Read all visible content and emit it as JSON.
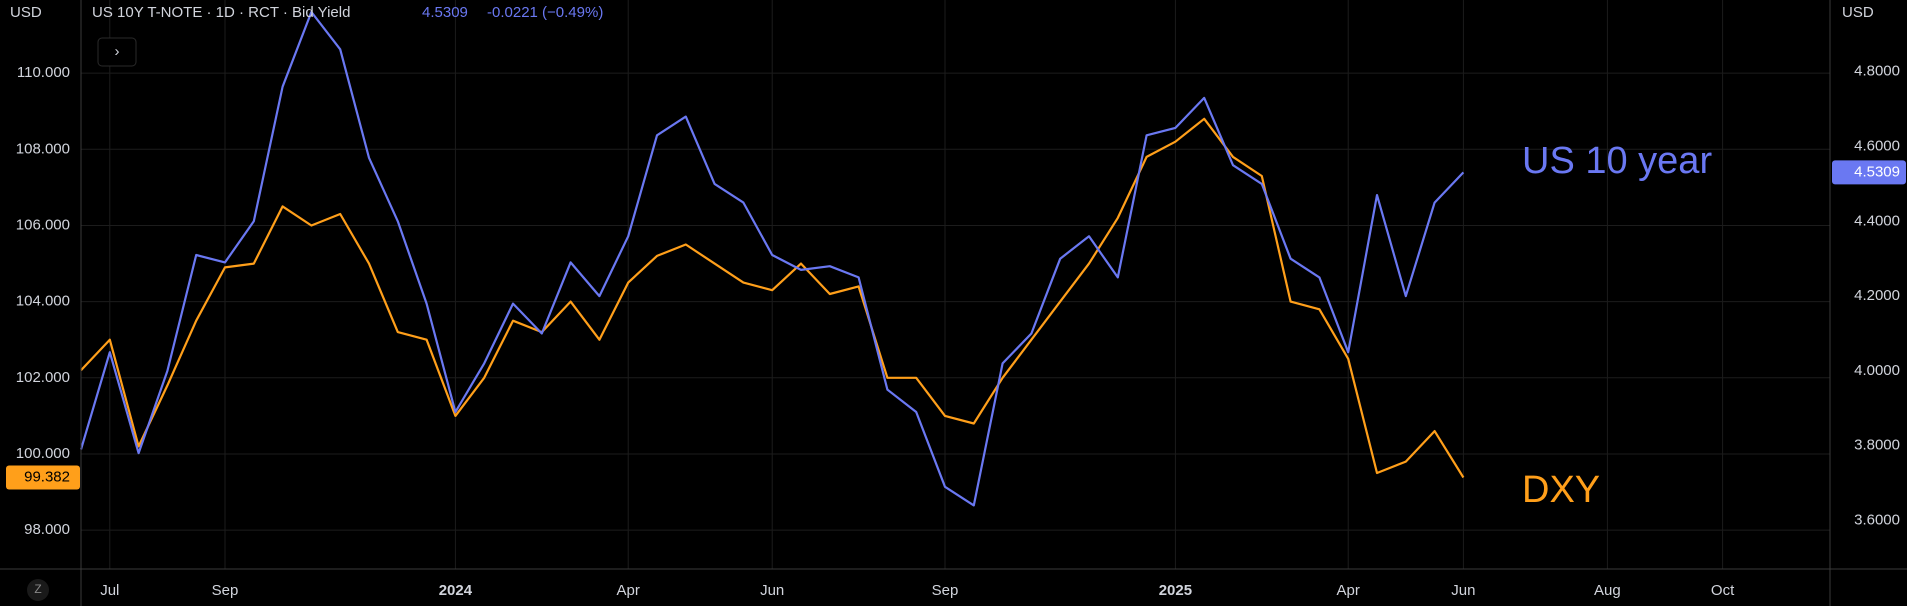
{
  "toolbar": {
    "currency_left": "USD",
    "currency_right": "USD",
    "timezone": "Z",
    "expand": "›"
  },
  "header": {
    "symbol": "US 10Y T-NOTE · 1D · RCT · Bid Yield",
    "change": "-0.0221 (−0.49%)"
  },
  "chart_data": {
    "type": "line",
    "categories": [
      null,
      "Jul",
      null,
      null,
      null,
      "Sep",
      null,
      null,
      null,
      null,
      null,
      null,
      null,
      "2024",
      null,
      null,
      null,
      null,
      null,
      "Apr",
      null,
      null,
      null,
      null,
      "Jun",
      null,
      null,
      null,
      null,
      null,
      "Sep",
      null,
      null,
      null,
      null,
      null,
      null,
      null,
      "2025",
      null,
      null,
      null,
      null,
      null,
      "Apr",
      null,
      null,
      null,
      "Jun",
      null,
      null,
      null,
      null,
      "Aug",
      null,
      null,
      null,
      "Oct",
      null,
      null,
      null
    ],
    "series": [
      {
        "name": "DXY",
        "color": "#ff9f1a",
        "axis": "y",
        "values": [
          102.2,
          103.0,
          100.2,
          101.8,
          103.5,
          104.9,
          105.0,
          106.5,
          106.0,
          106.3,
          105.0,
          103.2,
          103.0,
          101.0,
          102.0,
          103.5,
          103.2,
          104.0,
          103.0,
          104.5,
          105.2,
          105.5,
          105.0,
          104.5,
          104.3,
          105.0,
          104.2,
          104.4,
          102.0,
          102.0,
          101.0,
          100.8,
          102.0,
          103.0,
          104.0,
          105.0,
          106.2,
          107.8,
          108.2,
          108.8,
          107.8,
          107.3,
          104.0,
          103.8,
          102.5,
          99.5,
          99.8,
          100.6,
          99.382,
          null,
          null,
          null,
          null,
          null,
          null,
          null,
          null,
          null,
          null,
          null,
          null
        ]
      },
      {
        "name": "US 10 year",
        "color": "#6a78f2",
        "axis": "y2",
        "values": [
          3.79,
          4.05,
          3.78,
          4.0,
          4.31,
          4.29,
          4.4,
          4.76,
          4.96,
          4.86,
          4.57,
          4.4,
          4.18,
          3.89,
          4.02,
          4.18,
          4.1,
          4.29,
          4.2,
          4.36,
          4.63,
          4.68,
          4.5,
          4.45,
          4.31,
          4.27,
          4.28,
          4.25,
          3.95,
          3.89,
          3.69,
          3.64,
          4.02,
          4.1,
          4.3,
          4.36,
          4.25,
          4.63,
          4.65,
          4.73,
          4.55,
          4.5,
          4.3,
          4.25,
          4.05,
          4.47,
          4.2,
          4.45,
          4.5309,
          null,
          null,
          null,
          null,
          null,
          null,
          null,
          null,
          null,
          null,
          null,
          null
        ]
      }
    ],
    "ylim": [
      96.98,
      111.92
    ],
    "yticks": [
      {
        "value": 98,
        "label": "98.000"
      },
      {
        "value": 100,
        "label": "100.000"
      },
      {
        "value": 102,
        "label": "102.000"
      },
      {
        "value": 104,
        "label": "104.000"
      },
      {
        "value": 106,
        "label": "106.000"
      },
      {
        "value": 108,
        "label": "108.000"
      },
      {
        "value": 110,
        "label": "110.000"
      }
    ],
    "y2lim": [
      3.47,
      4.992
    ],
    "y2ticks": [
      {
        "value": 3.6,
        "label": "3.6000"
      },
      {
        "value": 3.8,
        "label": "3.8000"
      },
      {
        "value": 4.0,
        "label": "4.0000"
      },
      {
        "value": 4.2,
        "label": "4.2000"
      },
      {
        "value": 4.4,
        "label": "4.4000"
      },
      {
        "value": 4.6,
        "label": "4.6000"
      },
      {
        "value": 4.8,
        "label": "4.8000"
      }
    ],
    "grid": true
  }
}
